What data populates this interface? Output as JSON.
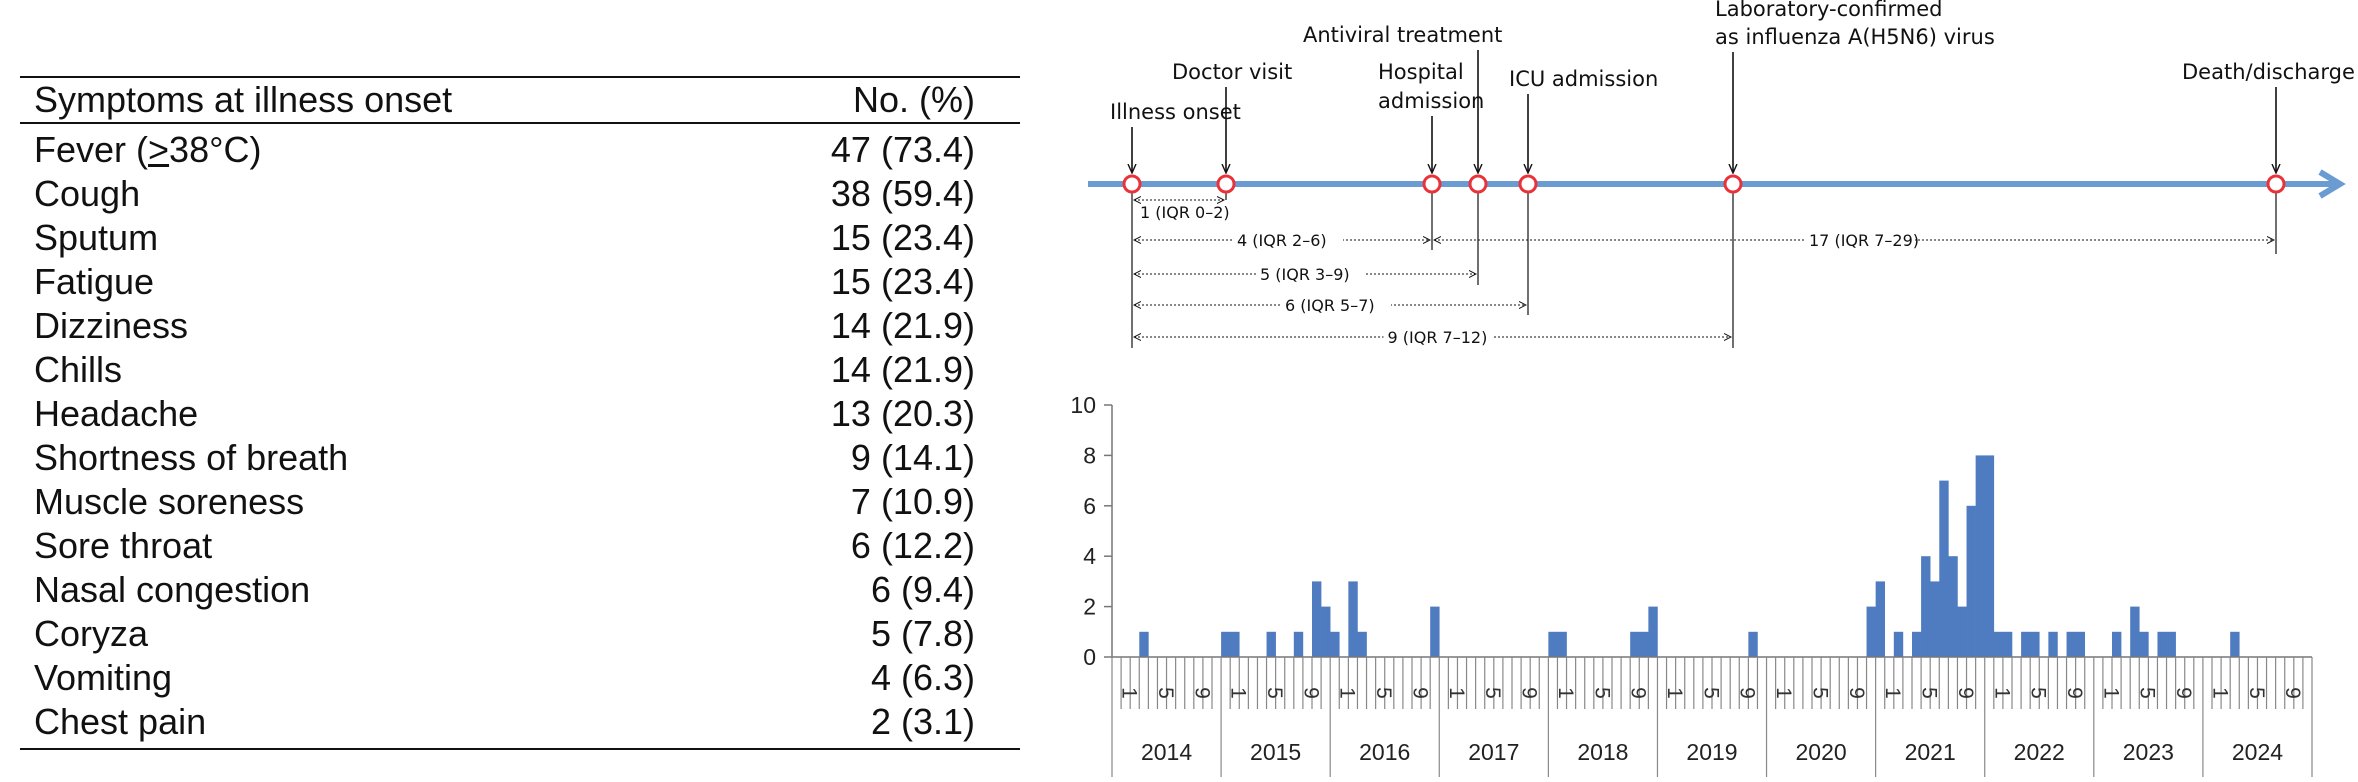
{
  "table": {
    "header": {
      "symptom": "Symptoms at illness onset",
      "count": "No. (%)"
    },
    "fever": {
      "prefix": "Fever (",
      "geq": ">",
      "suffix": "38°C)",
      "count": "47 (73.4)"
    },
    "rows": [
      {
        "symptom": "Cough",
        "count": "38 (59.4)"
      },
      {
        "symptom": "Sputum",
        "count": "15 (23.4)"
      },
      {
        "symptom": "Fatigue",
        "count": "15 (23.4)"
      },
      {
        "symptom": "Dizziness",
        "count": "14 (21.9)"
      },
      {
        "symptom": "Chills",
        "count": "14 (21.9)"
      },
      {
        "symptom": "Headache",
        "count": "13 (20.3)"
      },
      {
        "symptom": "Shortness of breath",
        "count": "9 (14.1)"
      },
      {
        "symptom": "Muscle soreness",
        "count": "7 (10.9)"
      },
      {
        "symptom": "Sore throat",
        "count": "6 (12.2)"
      },
      {
        "symptom": "Nasal congestion",
        "count": "6 (9.4)"
      },
      {
        "symptom": "Coryza",
        "count": "5 (7.8)"
      },
      {
        "symptom": "Vomiting",
        "count": "4 (6.3)"
      },
      {
        "symptom": "Chest pain",
        "count": "2 (3.1)"
      }
    ]
  },
  "timeline": {
    "line_color": "#6a9bd1",
    "marker_color": "#e8333a",
    "events": [
      {
        "key": "onset",
        "label_lines": [
          "Illness onset"
        ]
      },
      {
        "key": "doctor",
        "label_lines": [
          "Doctor visit"
        ]
      },
      {
        "key": "hospital",
        "label_lines": [
          "Hospital",
          "admission"
        ]
      },
      {
        "key": "antiviral",
        "label_lines": [
          "Antiviral treatment"
        ]
      },
      {
        "key": "icu",
        "label_lines": [
          "ICU admission"
        ]
      },
      {
        "key": "lab",
        "label_lines": [
          "Laboratory-confirmed",
          "as influenza A(H5N6) virus"
        ]
      },
      {
        "key": "death",
        "label_lines": [
          "Death/discharge"
        ]
      }
    ],
    "intervals": [
      {
        "from": "onset",
        "to": "doctor",
        "label": "1 (IQR 0–2)"
      },
      {
        "from": "onset",
        "to": "hospital",
        "label": "4 (IQR 2–6)"
      },
      {
        "from": "hospital",
        "to": "death",
        "label": "17 (IQR 7–29)"
      },
      {
        "from": "onset",
        "to": "antiviral",
        "label": "5 (IQR 3–9)"
      },
      {
        "from": "onset",
        "to": "icu",
        "label": "6 (IQR 5–7)"
      },
      {
        "from": "onset",
        "to": "lab",
        "label": "9 (IQR 7–12)"
      }
    ]
  },
  "chart_data": {
    "type": "bar",
    "bar_color": "#4f7cc0",
    "ylim": [
      0,
      10
    ],
    "yticks": [
      0,
      2,
      4,
      6,
      8,
      10
    ],
    "x_month_ticks_shown": [
      "1",
      "5",
      "9"
    ],
    "years": [
      "2014",
      "2015",
      "2016",
      "2017",
      "2018",
      "2019",
      "2020",
      "2021",
      "2022",
      "2023",
      "2024"
    ],
    "values": [
      0,
      0,
      0,
      1,
      0,
      0,
      0,
      0,
      0,
      0,
      0,
      0,
      1,
      1,
      0,
      0,
      0,
      1,
      0,
      0,
      1,
      0,
      3,
      2,
      1,
      0,
      3,
      1,
      0,
      0,
      0,
      0,
      0,
      0,
      0,
      2,
      0,
      0,
      0,
      0,
      0,
      0,
      0,
      0,
      0,
      0,
      0,
      0,
      1,
      1,
      0,
      0,
      0,
      0,
      0,
      0,
      0,
      1,
      1,
      2,
      0,
      0,
      0,
      0,
      0,
      0,
      0,
      0,
      0,
      0,
      1,
      0,
      0,
      0,
      0,
      0,
      0,
      0,
      0,
      0,
      0,
      0,
      0,
      2,
      3,
      0,
      1,
      0,
      1,
      4,
      3,
      7,
      4,
      2,
      6,
      8,
      8,
      1,
      1,
      0,
      1,
      1,
      0,
      1,
      0,
      1,
      1,
      0,
      0,
      0,
      1,
      0,
      2,
      1,
      0,
      1,
      1,
      0,
      0,
      0,
      0,
      0,
      0,
      1,
      0,
      0,
      0,
      0,
      0,
      0,
      0,
      0
    ]
  }
}
